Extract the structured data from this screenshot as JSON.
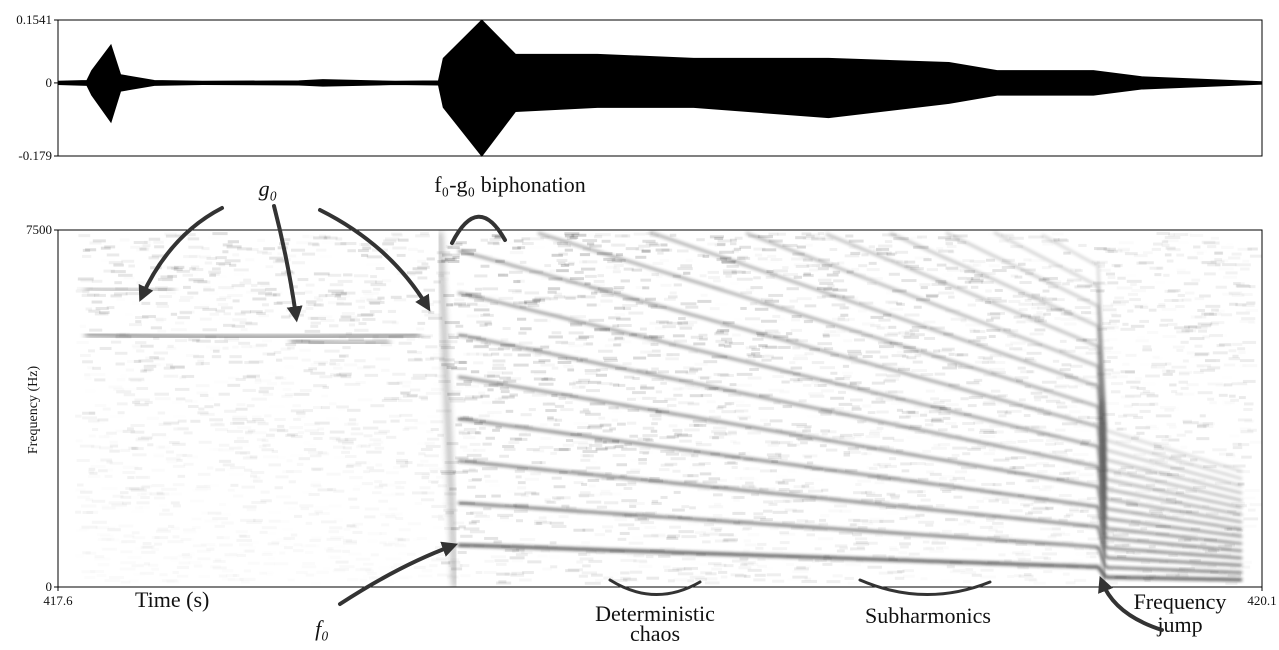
{
  "chart_data": [
    {
      "type": "area",
      "x": [
        417.6,
        417.66,
        417.67,
        417.71,
        417.73,
        417.8,
        417.9,
        418.1,
        418.15,
        418.3,
        418.39,
        418.4,
        418.48,
        418.55,
        418.72,
        418.92,
        419.2,
        419.45,
        419.55,
        419.75,
        419.85,
        420.1
      ],
      "series": [
        {
          "color": "#000000",
          "values": [
            0.004,
            0.006,
            0.03,
            0.093,
            0.02,
            0.006,
            0.004,
            0.005,
            0.008,
            0.004,
            0.005,
            0.06,
            0.154,
            0.07,
            0.07,
            0.06,
            0.06,
            0.05,
            0.03,
            0.03,
            0.015,
            0.003
          ]
        },
        {
          "color": "#000000",
          "values": [
            -0.004,
            -0.006,
            -0.03,
            -0.096,
            -0.02,
            -0.006,
            -0.004,
            -0.005,
            -0.008,
            -0.004,
            -0.005,
            -0.06,
            -0.179,
            -0.07,
            -0.06,
            -0.06,
            -0.085,
            -0.05,
            -0.03,
            -0.03,
            -0.015,
            -0.003
          ]
        }
      ],
      "xlim": [
        417.6,
        420.1
      ],
      "ylim": [
        -0.179,
        0.1541
      ],
      "yticks": [
        0.1541,
        0,
        -0.179
      ]
    },
    {
      "type": "spectrogram",
      "xlabel": "Time (s)",
      "ylabel": "Frequency (Hz)",
      "xlim": [
        417.6,
        420.1
      ],
      "xticks": [
        417.6,
        420.1
      ],
      "ylim": [
        0,
        7500
      ],
      "yticks": [
        0,
        7500
      ],
      "annotations": [
        {
          "lines": [
            "g₀"
          ]
        },
        {
          "lines": [
            "f₀-g₀ biphonation"
          ]
        },
        {
          "lines": [
            "f₀"
          ]
        },
        {
          "lines": [
            "Deterministic",
            "chaos"
          ]
        },
        {
          "lines": [
            "Subharmonics"
          ]
        },
        {
          "lines": [
            "Frequency",
            "jump"
          ]
        }
      ]
    }
  ]
}
